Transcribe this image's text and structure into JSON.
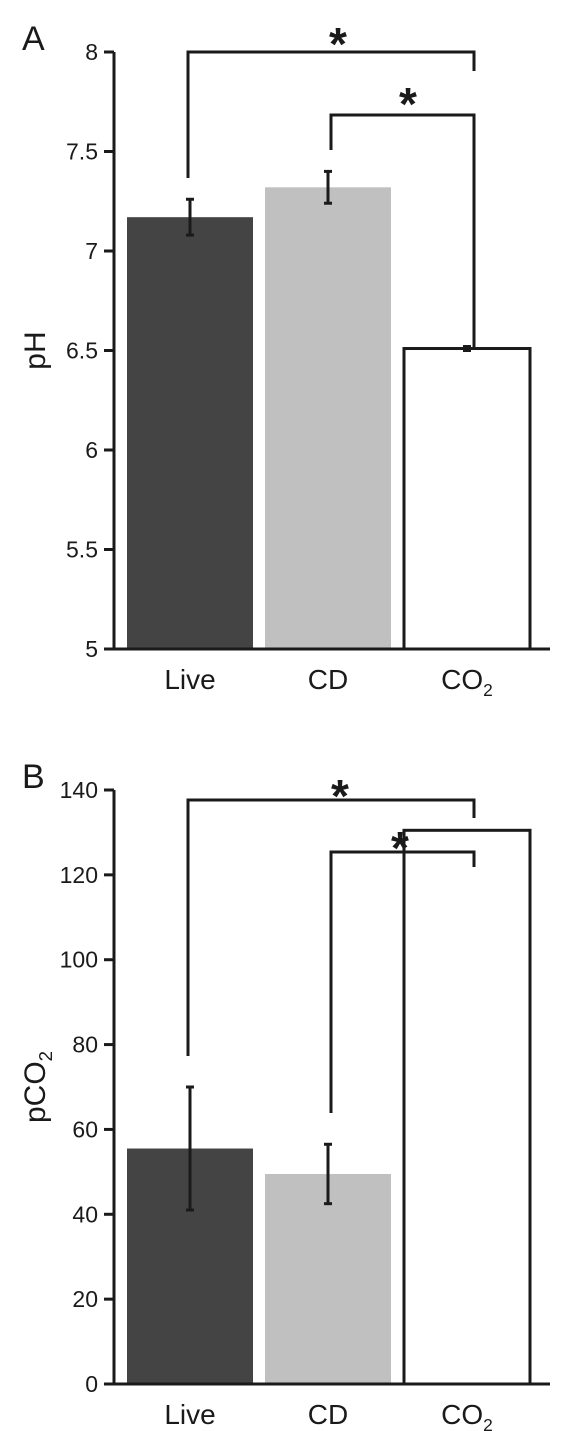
{
  "chart_data": [
    {
      "type": "bar",
      "panel": "A",
      "categories": [
        "Live",
        "CD",
        "CO2"
      ],
      "category_labels": [
        {
          "base": "Live",
          "sub": ""
        },
        {
          "base": "CD",
          "sub": ""
        },
        {
          "base": "CO",
          "sub": "2"
        }
      ],
      "values": [
        7.17,
        7.32,
        6.51
      ],
      "errors": [
        0.09,
        0.08,
        0.01
      ],
      "bar_colors": [
        "#444444",
        "#c0c0c0",
        "#ffffff"
      ],
      "ylabel": {
        "base": "pH",
        "sub": ""
      },
      "ylim": [
        5,
        8
      ],
      "yticks": [
        5,
        5.5,
        6,
        6.5,
        7,
        7.5,
        8
      ],
      "ytick_labels": [
        "5",
        "5.5",
        "6",
        "6.5",
        "7",
        "7.5",
        "8"
      ],
      "grid": false,
      "significance": [
        {
          "from": "Live",
          "to": "CO2",
          "label": "*"
        },
        {
          "from": "CD",
          "to": "CO2",
          "label": "*"
        }
      ]
    },
    {
      "type": "bar",
      "panel": "B",
      "categories": [
        "Live",
        "CD",
        "CO2"
      ],
      "category_labels": [
        {
          "base": "Live",
          "sub": ""
        },
        {
          "base": "CD",
          "sub": ""
        },
        {
          "base": "CO",
          "sub": "2"
        }
      ],
      "values": [
        55.5,
        49.5,
        130.5
      ],
      "errors": [
        14.5,
        7.0,
        0
      ],
      "bar_colors": [
        "#444444",
        "#c0c0c0",
        "#ffffff"
      ],
      "ylabel": {
        "base": "pCO",
        "sub": "2"
      },
      "ylim": [
        0,
        140
      ],
      "yticks": [
        0,
        20,
        40,
        60,
        80,
        100,
        120,
        140
      ],
      "ytick_labels": [
        "0",
        "20",
        "40",
        "60",
        "80",
        "100",
        "120",
        "140"
      ],
      "grid": false,
      "significance": [
        {
          "from": "Live",
          "to": "CO2",
          "label": "*"
        },
        {
          "from": "CD",
          "to": "CO2",
          "label": "*"
        }
      ]
    }
  ]
}
